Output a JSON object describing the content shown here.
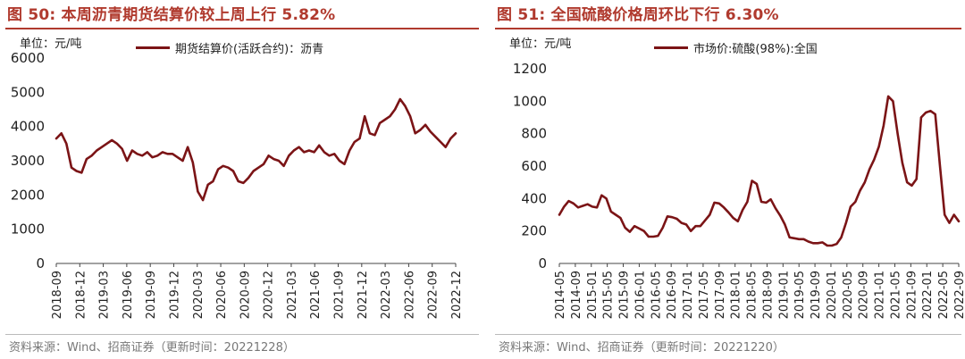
{
  "chart_data": [
    {
      "type": "line",
      "title": "图 50: 本周沥青期货结算价较上周上行 5.82%",
      "unit_label": "单位：元/吨",
      "ylim": [
        0,
        6000
      ],
      "yticks": [
        0,
        1000,
        2000,
        3000,
        4000,
        5000,
        6000
      ],
      "xticks": [
        "2018-09",
        "2018-12",
        "2019-03",
        "2019-06",
        "2019-09",
        "2019-12",
        "2020-03",
        "2020-06",
        "2020-09",
        "2020-12",
        "2021-03",
        "2021-06",
        "2021-09",
        "2021-12",
        "2022-03",
        "2022-06",
        "2022-09",
        "2022-12"
      ],
      "grid": false,
      "legend_position": "top",
      "series": [
        {
          "name": "期货结算价(活跃合约)：沥青",
          "color": "#7b1416",
          "values": [
            3650,
            3800,
            3500,
            2800,
            2700,
            2650,
            3050,
            3150,
            3300,
            3400,
            3500,
            3600,
            3500,
            3350,
            3000,
            3300,
            3200,
            3150,
            3250,
            3100,
            3150,
            3250,
            3200,
            3200,
            3100,
            3000,
            3400,
            2950,
            2100,
            1850,
            2300,
            2400,
            2750,
            2850,
            2800,
            2700,
            2400,
            2350,
            2500,
            2700,
            2800,
            2900,
            3150,
            3050,
            3000,
            2850,
            3150,
            3300,
            3400,
            3250,
            3300,
            3250,
            3450,
            3250,
            3150,
            3200,
            3000,
            2900,
            3300,
            3550,
            3650,
            4300,
            3800,
            3750,
            4100,
            4200,
            4300,
            4500,
            4800,
            4600,
            4300,
            3800,
            3900,
            4050,
            3850,
            3700,
            3550,
            3400,
            3650,
            3800
          ]
        }
      ],
      "source": "资料来源：Wind、招商证券（更新时间：20221228）"
    },
    {
      "type": "line",
      "title": "图 51: 全国硫酸价格周环比下行 6.30%",
      "unit_label": "单位：元/吨",
      "ylim": [
        0,
        1200
      ],
      "yticks": [
        0,
        200,
        400,
        600,
        800,
        1000,
        1200
      ],
      "xticks": [
        "2014-05",
        "2014-09",
        "2015-01",
        "2015-05",
        "2015-09",
        "2016-01",
        "2016-05",
        "2016-09",
        "2017-01",
        "2017-05",
        "2017-09",
        "2018-01",
        "2018-05",
        "2018-09",
        "2019-01",
        "2019-05",
        "2019-09",
        "2020-01",
        "2020-05",
        "2020-09",
        "2021-01",
        "2021-05",
        "2021-09",
        "2022-01",
        "2022-05",
        "2022-09"
      ],
      "grid": false,
      "legend_position": "top",
      "series": [
        {
          "name": "市场价:硫酸(98%):全国",
          "color": "#7b1416",
          "values": [
            300,
            350,
            385,
            370,
            345,
            355,
            365,
            350,
            345,
            420,
            400,
            320,
            300,
            280,
            220,
            195,
            230,
            215,
            200,
            165,
            165,
            170,
            220,
            290,
            285,
            275,
            250,
            240,
            200,
            230,
            230,
            265,
            300,
            375,
            370,
            345,
            315,
            280,
            260,
            330,
            380,
            510,
            490,
            380,
            375,
            395,
            340,
            295,
            240,
            160,
            155,
            150,
            150,
            135,
            125,
            125,
            130,
            110,
            110,
            120,
            160,
            250,
            350,
            380,
            450,
            500,
            580,
            640,
            720,
            850,
            1030,
            1000,
            800,
            620,
            500,
            480,
            520,
            900,
            930,
            940,
            920,
            600,
            300,
            250,
            300,
            260
          ]
        }
      ],
      "source": "资料来源：Wind、招商证券（更新时间：20221220）"
    }
  ]
}
